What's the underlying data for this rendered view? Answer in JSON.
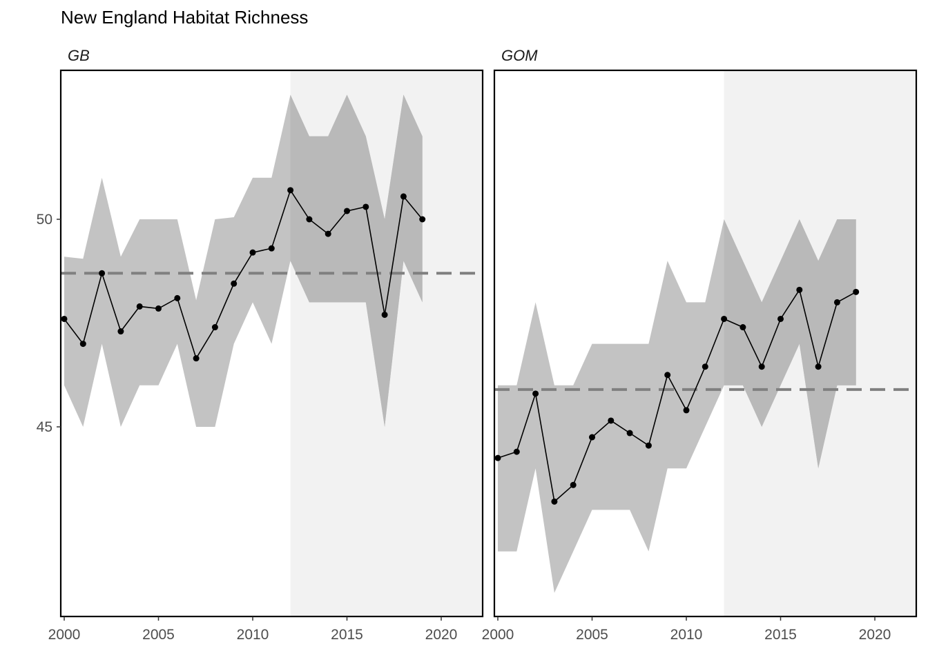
{
  "chart_data": {
    "type": "line",
    "title": "New England Habitat Richness",
    "xlabel": "",
    "ylabel": "",
    "xlim": [
      2000,
      2022
    ],
    "ylim": [
      40.3,
      53.5
    ],
    "x_ticks": [
      2000,
      2005,
      2010,
      2015,
      2020
    ],
    "y_ticks": [
      45,
      50
    ],
    "shaded_period": [
      2012,
      2022
    ],
    "legend": "none",
    "grid": false,
    "panels": [
      {
        "name": "GB",
        "mean_line": 48.7,
        "x": [
          2000,
          2001,
          2002,
          2003,
          2004,
          2005,
          2006,
          2007,
          2008,
          2009,
          2010,
          2011,
          2012,
          2013,
          2014,
          2015,
          2016,
          2017,
          2018,
          2019
        ],
        "values": [
          47.6,
          47.0,
          48.7,
          47.3,
          47.9,
          47.85,
          48.1,
          46.65,
          47.4,
          48.45,
          49.2,
          49.3,
          50.7,
          50.0,
          49.65,
          50.2,
          50.3,
          47.7,
          50.55,
          50.0
        ],
        "band_upper": [
          49.1,
          49.05,
          51.0,
          49.1,
          50.0,
          50.0,
          50.0,
          48.05,
          50.0,
          50.05,
          51.0,
          51.0,
          53.0,
          52.0,
          52.0,
          53.0,
          52.0,
          50.0,
          53.0,
          52.0
        ],
        "band_lower": [
          46.0,
          45.0,
          47.0,
          45.0,
          46.0,
          46.0,
          47.0,
          45.0,
          45.0,
          47.0,
          48.0,
          47.0,
          49.0,
          48.0,
          48.0,
          48.0,
          48.0,
          45.0,
          49.0,
          48.0
        ]
      },
      {
        "name": "GOM",
        "mean_line": 45.9,
        "x": [
          2000,
          2001,
          2002,
          2003,
          2004,
          2005,
          2006,
          2007,
          2008,
          2009,
          2010,
          2011,
          2012,
          2013,
          2014,
          2015,
          2016,
          2017,
          2018,
          2019
        ],
        "values": [
          44.25,
          44.4,
          45.8,
          43.2,
          43.6,
          44.75,
          45.15,
          44.85,
          44.55,
          46.25,
          45.4,
          46.45,
          47.6,
          47.4,
          46.45,
          47.6,
          48.3,
          46.45,
          48.0,
          48.25
        ],
        "band_upper": [
          46.0,
          46.0,
          48.0,
          46.0,
          46.0,
          47.0,
          47.0,
          47.0,
          47.0,
          49.0,
          48.0,
          48.0,
          50.0,
          49.0,
          48.0,
          49.0,
          50.0,
          49.0,
          50.0,
          50.0
        ],
        "band_lower": [
          42.0,
          42.0,
          44.0,
          41.0,
          42.0,
          43.0,
          43.0,
          43.0,
          42.0,
          44.0,
          44.0,
          45.0,
          46.0,
          46.0,
          45.0,
          46.0,
          47.0,
          44.0,
          46.0,
          46.0
        ]
      }
    ]
  },
  "colors": {
    "band": "#c3c3c3",
    "shade": "#f2f2f2",
    "band_over_shade": "#b9b9b9",
    "mean_line": "#808080",
    "series": "#000000",
    "axis_text": "#4d4d4d"
  }
}
